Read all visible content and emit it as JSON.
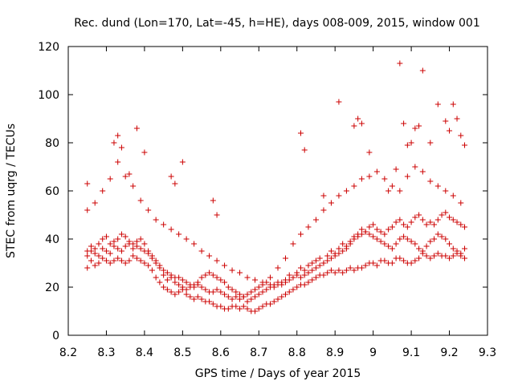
{
  "chart_data": {
    "type": "scatter",
    "title": "Rec. dund (Lon=170, Lat=-45, h=HE), days 008-009, 2015, window 001",
    "xlabel": "GPS time / Days of year 2015",
    "ylabel": "STEC from uqrg / TECUs",
    "xlim": [
      8.2,
      9.3
    ],
    "ylim": [
      0,
      120
    ],
    "xticks": [
      "8.2",
      "8.3",
      "8.4",
      "8.5",
      "8.6",
      "8.7",
      "8.8",
      "8.9",
      "9",
      "9.1",
      "9.2",
      "9.3"
    ],
    "yticks": [
      "0",
      "20",
      "40",
      "60",
      "80",
      "100",
      "120"
    ],
    "grid": false,
    "legend": "none",
    "color": "#cc0000",
    "series": [
      {
        "x": [
          8.25,
          8.26,
          8.27,
          8.28,
          8.29,
          8.3,
          8.31,
          8.32,
          8.33,
          8.34,
          8.35,
          8.36,
          8.37,
          8.38,
          8.39,
          8.4,
          8.41,
          8.42,
          8.43,
          8.44,
          8.45,
          8.46,
          8.47,
          8.48,
          8.49,
          8.5,
          8.51,
          8.52,
          8.53,
          8.54,
          8.55,
          8.56,
          8.57,
          8.58,
          8.59,
          8.6,
          8.61,
          8.62,
          8.63,
          8.64,
          8.65,
          8.66,
          8.67,
          8.68,
          8.69,
          8.7,
          8.71,
          8.72,
          8.73,
          8.74,
          8.75,
          8.76,
          8.77,
          8.78,
          8.79,
          8.8,
          8.81,
          8.82,
          8.83,
          8.84,
          8.85,
          8.86,
          8.87,
          8.88,
          8.89,
          8.9,
          8.91,
          8.92,
          8.93,
          8.94,
          8.95,
          8.96,
          8.97,
          8.98,
          8.99,
          9.0,
          9.01,
          9.02,
          9.03,
          9.04,
          9.05,
          9.06,
          9.07,
          9.08,
          9.09,
          9.1,
          9.11,
          9.12,
          9.13,
          9.14,
          9.15,
          9.16,
          9.17,
          9.18,
          9.19,
          9.2,
          9.21,
          9.22,
          9.23,
          9.24,
          8.25,
          8.26,
          8.27,
          8.28,
          8.29,
          8.3,
          8.31,
          8.32,
          8.33,
          8.34,
          8.35,
          8.36,
          8.37,
          8.38,
          8.39,
          8.4,
          8.41,
          8.42,
          8.43,
          8.44,
          8.45,
          8.46,
          8.47,
          8.48,
          8.49,
          8.5,
          8.51,
          8.52,
          8.53,
          8.54,
          8.55,
          8.56,
          8.57,
          8.58,
          8.59,
          8.6,
          8.61,
          8.62,
          8.63,
          8.64,
          8.65,
          8.66,
          8.67,
          8.68,
          8.69,
          8.7,
          8.71,
          8.72,
          8.73,
          8.74,
          8.75,
          8.76,
          8.77,
          8.78,
          8.79,
          8.8,
          8.81,
          8.82,
          8.83,
          8.84,
          8.85,
          8.86,
          8.87,
          8.88,
          8.89,
          8.9,
          8.91,
          8.92,
          8.93,
          8.94,
          8.95,
          8.96,
          8.97,
          8.98,
          8.99,
          9.0,
          9.01,
          9.02,
          9.03,
          9.04,
          9.05,
          9.06,
          9.07,
          9.08,
          9.09,
          9.1,
          9.11,
          9.12,
          9.13,
          9.14,
          9.15,
          9.16,
          9.17,
          9.18,
          9.19,
          9.2,
          9.21,
          9.22,
          9.23,
          9.24,
          8.25,
          8.26,
          8.27,
          8.28,
          8.29,
          8.3,
          8.31,
          8.32,
          8.33,
          8.34,
          8.35,
          8.36,
          8.37,
          8.38,
          8.39,
          8.4,
          8.41,
          8.42,
          8.43,
          8.44,
          8.45,
          8.46,
          8.47,
          8.48,
          8.49,
          8.5,
          8.51,
          8.52,
          8.53,
          8.54,
          8.55,
          8.56,
          8.57,
          8.58,
          8.59,
          8.6,
          8.61,
          8.62,
          8.63,
          8.64,
          8.65,
          8.66,
          8.67,
          8.68,
          8.69,
          8.7,
          8.71,
          8.72,
          8.73,
          8.74,
          8.75,
          8.76,
          8.77,
          8.78,
          8.79,
          8.8,
          8.81,
          8.82,
          8.83,
          8.84,
          8.85,
          8.86,
          8.87,
          8.88,
          8.89,
          8.9,
          8.91,
          8.92,
          8.93,
          8.94,
          8.95,
          8.96,
          8.97,
          8.98,
          8.99,
          9.0,
          9.01,
          9.02,
          9.03,
          9.04,
          9.05,
          9.06,
          9.07,
          9.08,
          9.09,
          9.1,
          9.11,
          9.12,
          9.13,
          9.14,
          9.15,
          9.16,
          9.17,
          9.18,
          9.19,
          9.2,
          9.21,
          9.22,
          9.23,
          9.24,
          8.25,
          8.27,
          8.29,
          8.31,
          8.33,
          8.35,
          8.37,
          8.39,
          8.41,
          8.43,
          8.45,
          8.47,
          8.49,
          8.51,
          8.53,
          8.55,
          8.57,
          8.59,
          8.61,
          8.63,
          8.65,
          8.67,
          8.69,
          8.71,
          8.73,
          8.75,
          8.77,
          8.79,
          8.81,
          8.83,
          8.85,
          8.87,
          8.89,
          8.91,
          8.93,
          8.95,
          8.97,
          8.99,
          9.01,
          9.03,
          9.05,
          9.07,
          9.09,
          9.11,
          9.13,
          9.15,
          9.17,
          9.19,
          9.21,
          9.23,
          8.25,
          8.32,
          8.33,
          8.34,
          8.36,
          8.38,
          8.4,
          8.47,
          8.48,
          8.5,
          8.58,
          8.59,
          8.81,
          8.82,
          8.87,
          8.91,
          8.95,
          8.96,
          8.97,
          8.99,
          9.04,
          9.06,
          9.07,
          9.08,
          9.09,
          9.1,
          9.11,
          9.12,
          9.13,
          9.15,
          9.17,
          9.19,
          9.2,
          9.21,
          9.22,
          9.23,
          9.24
        ],
        "y": [
          28,
          31,
          29,
          30,
          32,
          31,
          30,
          31,
          32,
          31,
          30,
          31,
          33,
          32,
          31,
          30,
          29,
          27,
          24,
          22,
          20,
          19,
          18,
          17,
          18,
          19,
          17,
          16,
          15,
          16,
          15,
          14,
          14,
          13,
          12,
          12,
          11,
          11,
          12,
          12,
          11,
          12,
          11,
          10,
          10,
          11,
          12,
          13,
          13,
          14,
          15,
          16,
          17,
          18,
          19,
          20,
          21,
          21,
          22,
          23,
          24,
          25,
          25,
          26,
          27,
          26,
          27,
          26,
          27,
          28,
          27,
          28,
          28,
          29,
          30,
          30,
          29,
          31,
          31,
          30,
          30,
          32,
          32,
          31,
          30,
          30,
          31,
          32,
          34,
          33,
          32,
          33,
          34,
          33,
          33,
          32,
          33,
          34,
          33,
          32,
          35,
          37,
          36,
          38,
          40,
          41,
          38,
          39,
          40,
          42,
          41,
          39,
          38,
          37,
          36,
          35,
          34,
          33,
          31,
          29,
          27,
          26,
          25,
          24,
          24,
          23,
          22,
          21,
          20,
          21,
          20,
          19,
          18,
          18,
          19,
          18,
          17,
          16,
          15,
          16,
          15,
          16,
          14,
          15,
          16,
          17,
          18,
          19,
          20,
          21,
          22,
          21,
          22,
          23,
          24,
          25,
          24,
          25,
          26,
          27,
          28,
          29,
          30,
          31,
          32,
          33,
          34,
          35,
          36,
          38,
          40,
          41,
          42,
          43,
          42,
          41,
          40,
          39,
          38,
          37,
          36,
          38,
          40,
          41,
          40,
          39,
          38,
          36,
          35,
          37,
          39,
          40,
          42,
          41,
          40,
          38,
          36,
          35,
          34,
          36,
          33,
          35,
          34,
          33,
          36,
          35,
          34,
          37,
          36,
          35,
          37,
          38,
          36,
          39,
          40,
          38,
          35,
          32,
          30,
          28,
          25,
          23,
          24,
          22,
          21,
          20,
          19,
          20,
          21,
          22,
          24,
          25,
          26,
          25,
          24,
          23,
          22,
          20,
          19,
          18,
          17,
          16,
          17,
          18,
          19,
          20,
          21,
          22,
          21,
          20,
          21,
          22,
          23,
          25,
          24,
          26,
          28,
          27,
          29,
          30,
          31,
          32,
          30,
          33,
          35,
          34,
          36,
          38,
          37,
          39,
          41,
          42,
          44,
          43,
          45,
          46,
          44,
          43,
          42,
          44,
          45,
          47,
          48,
          46,
          45,
          47,
          49,
          50,
          48,
          46,
          47,
          46,
          48,
          50,
          51,
          49,
          48,
          47,
          46,
          45,
          52,
          55,
          60,
          65,
          72,
          66,
          62,
          56,
          52,
          48,
          46,
          44,
          42,
          40,
          38,
          35,
          33,
          31,
          29,
          27,
          26,
          24,
          23,
          22,
          24,
          28,
          32,
          38,
          42,
          45,
          48,
          52,
          55,
          58,
          60,
          62,
          65,
          66,
          68,
          65,
          62,
          60,
          66,
          70,
          68,
          64,
          62,
          60,
          58,
          55,
          63,
          80,
          83,
          78,
          67,
          86,
          76,
          66,
          63,
          72,
          56,
          50,
          84,
          77,
          58,
          97,
          87,
          90,
          88,
          76,
          60,
          69,
          113,
          88,
          79,
          80,
          86,
          87,
          110,
          80,
          96,
          89,
          85,
          96,
          90,
          83,
          79
        ]
      }
    ]
  }
}
